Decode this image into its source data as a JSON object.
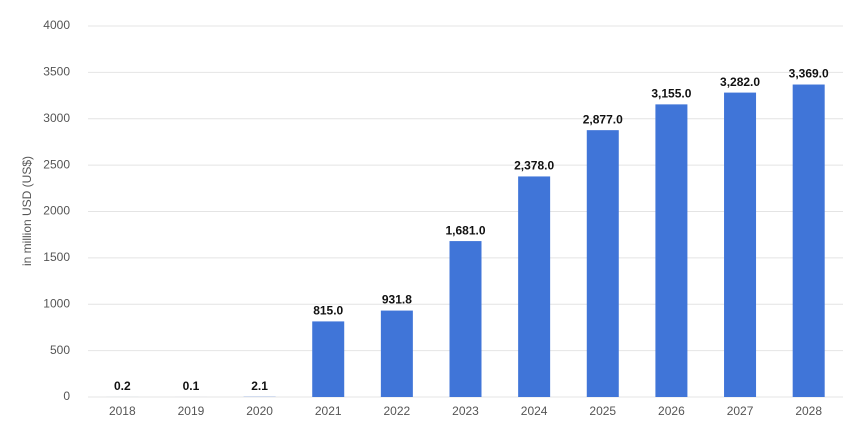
{
  "chart_data": {
    "type": "bar",
    "y_axis_label": "in million USD (US$)",
    "categories": [
      "2018",
      "2019",
      "2020",
      "2021",
      "2022",
      "2023",
      "2024",
      "2025",
      "2026",
      "2027",
      "2028"
    ],
    "values": [
      0.2,
      0.1,
      2.1,
      815,
      931.8,
      1681,
      2378,
      2877,
      3155,
      3282,
      3369
    ],
    "value_labels": [
      "0.2",
      "0.1",
      "2.1",
      "815.0",
      "931.8",
      "1,681.0",
      "2,378.0",
      "2,877.0",
      "3,155.0",
      "3,282.0",
      "3,369.0"
    ],
    "color": "#4075d8",
    "ylim": [
      0,
      4000
    ],
    "yticks": [
      0,
      500,
      1000,
      1500,
      2000,
      2500,
      3000,
      3500,
      4000
    ],
    "grid": true
  }
}
